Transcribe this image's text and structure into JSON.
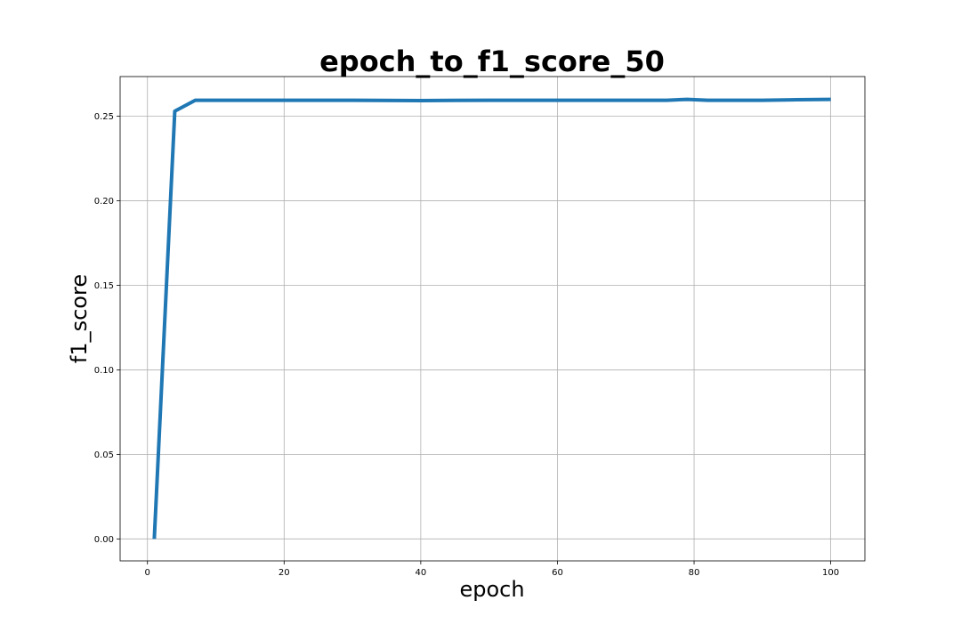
{
  "chart_data": {
    "type": "line",
    "title": "epoch_to_f1_score_50",
    "xlabel": "epoch",
    "ylabel": "f1_score",
    "xlim": [
      -4,
      105
    ],
    "ylim": [
      -0.013,
      0.2735
    ],
    "xticks": [
      0,
      20,
      40,
      60,
      80,
      100
    ],
    "xtick_labels": [
      "0",
      "20",
      "40",
      "60",
      "80",
      "100"
    ],
    "yticks": [
      0.0,
      0.05,
      0.1,
      0.15,
      0.2,
      0.25
    ],
    "ytick_labels": [
      "0.00",
      "0.05",
      "0.10",
      "0.15",
      "0.20",
      "0.25"
    ],
    "grid": true,
    "line_color": "#1f77b4",
    "series": [
      {
        "x": [
          1,
          4,
          7,
          10,
          20,
          30,
          40,
          50,
          60,
          70,
          76,
          79,
          82,
          85,
          90,
          95,
          100
        ],
        "y": [
          0.0,
          0.253,
          0.2595,
          0.2595,
          0.2595,
          0.2595,
          0.2593,
          0.2595,
          0.2595,
          0.2595,
          0.2595,
          0.26,
          0.2595,
          0.2595,
          0.2595,
          0.2598,
          0.26
        ]
      }
    ]
  }
}
